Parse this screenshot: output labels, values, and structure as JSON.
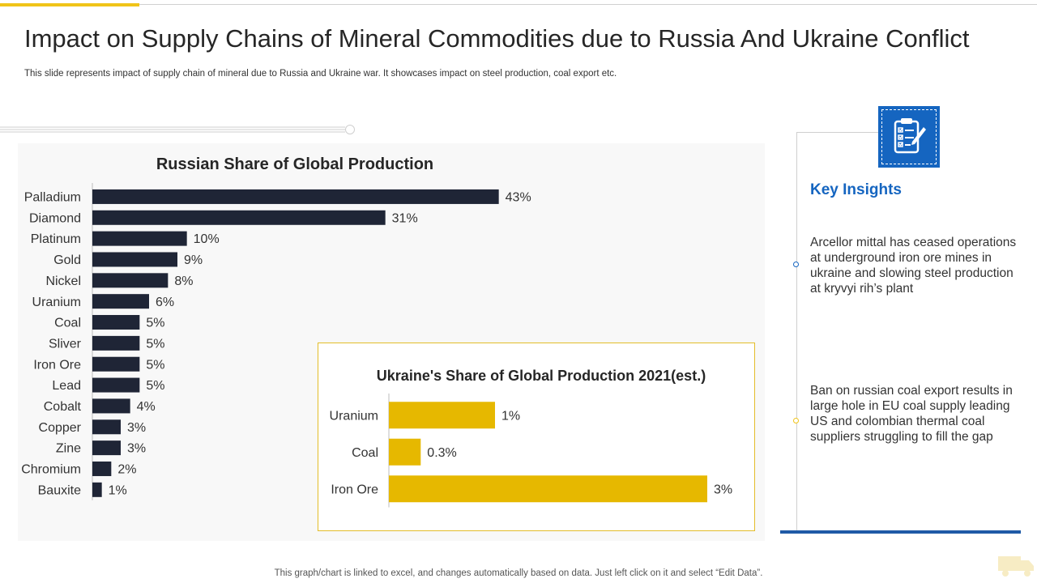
{
  "slide": {
    "title": "Impact on Supply Chains of Mineral Commodities due to Russia And Ukraine Conflict",
    "subtitle": "This slide represents impact of supply chain of mineral due to Russia and Ukraine war. It showcases impact on steel production, coal export etc.",
    "footer": "This graph/chart is linked to excel,  and changes automatically based on data. Just left click on it and select “Edit Data”."
  },
  "insights": {
    "icon": "clipboard-checklist-icon",
    "title": "Key Insights",
    "items": [
      "Arcellor mittal has ceased operations at underground iron ore mines in ukraine and slowing steel production at kryvyi  rih’s plant",
      "Ban on russian coal export results in large hole in EU coal supply leading US and colombian thermal  coal suppliers struggling to fill the gap"
    ]
  },
  "colors": {
    "russia_bar": "#1f2536",
    "ukraine_bar": "#e6b800",
    "accent_blue": "#1565c0",
    "accent_yellow": "#f0c419"
  },
  "chart_data": [
    {
      "type": "bar",
      "orientation": "horizontal",
      "title": "Russian Share of Global  Production",
      "categories": [
        "Palladium",
        "Diamond",
        "Platinum",
        "Gold",
        "Nickel",
        "Uranium",
        "Coal",
        "Sliver",
        "Iron Ore",
        "Lead",
        "Cobalt",
        "Copper",
        "Zine",
        "Chromium",
        "Bauxite"
      ],
      "values": [
        43,
        31,
        10,
        9,
        8,
        6,
        5,
        5,
        5,
        5,
        4,
        3,
        3,
        2,
        1
      ],
      "labels": [
        "43%",
        "31%",
        "10%",
        "9%",
        "8%",
        "6%",
        "5%",
        "5%",
        "5%",
        "5%",
        "4%",
        "3%",
        "3%",
        "2%",
        "1%"
      ],
      "unit": "%",
      "xlim": [
        0,
        45
      ],
      "grid": false,
      "legend": "none"
    },
    {
      "type": "bar",
      "orientation": "horizontal",
      "title": "Ukraine's Share of  Global Production 2021(est.)",
      "categories": [
        "Uranium",
        "Coal",
        "Iron Ore"
      ],
      "values": [
        1,
        0.3,
        3
      ],
      "labels": [
        "1%",
        "0.3%",
        "3%"
      ],
      "unit": "%",
      "xlim": [
        0,
        3
      ],
      "grid": false,
      "legend": "none"
    }
  ]
}
